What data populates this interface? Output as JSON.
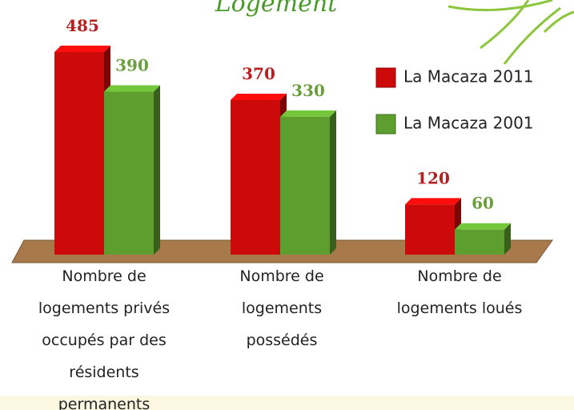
{
  "chart_data": {
    "type": "bar3d",
    "title": "Logement",
    "categories": [
      "Nombre de\nlogements privés\noccupés par des\nrésidents\npermanents",
      "Nombre de\nlogements\npossédés",
      "Nombre de\nlogements loués"
    ],
    "series": [
      {
        "name": "La Macaza 2011",
        "color": "#cc0a0a",
        "label_color": "#b52020",
        "values": [
          485,
          370,
          120
        ]
      },
      {
        "name": "La Macaza 2001",
        "color": "#5d9e2e",
        "label_color": "#6a9f3c",
        "values": [
          390,
          330,
          60
        ]
      }
    ],
    "legend": "right"
  }
}
